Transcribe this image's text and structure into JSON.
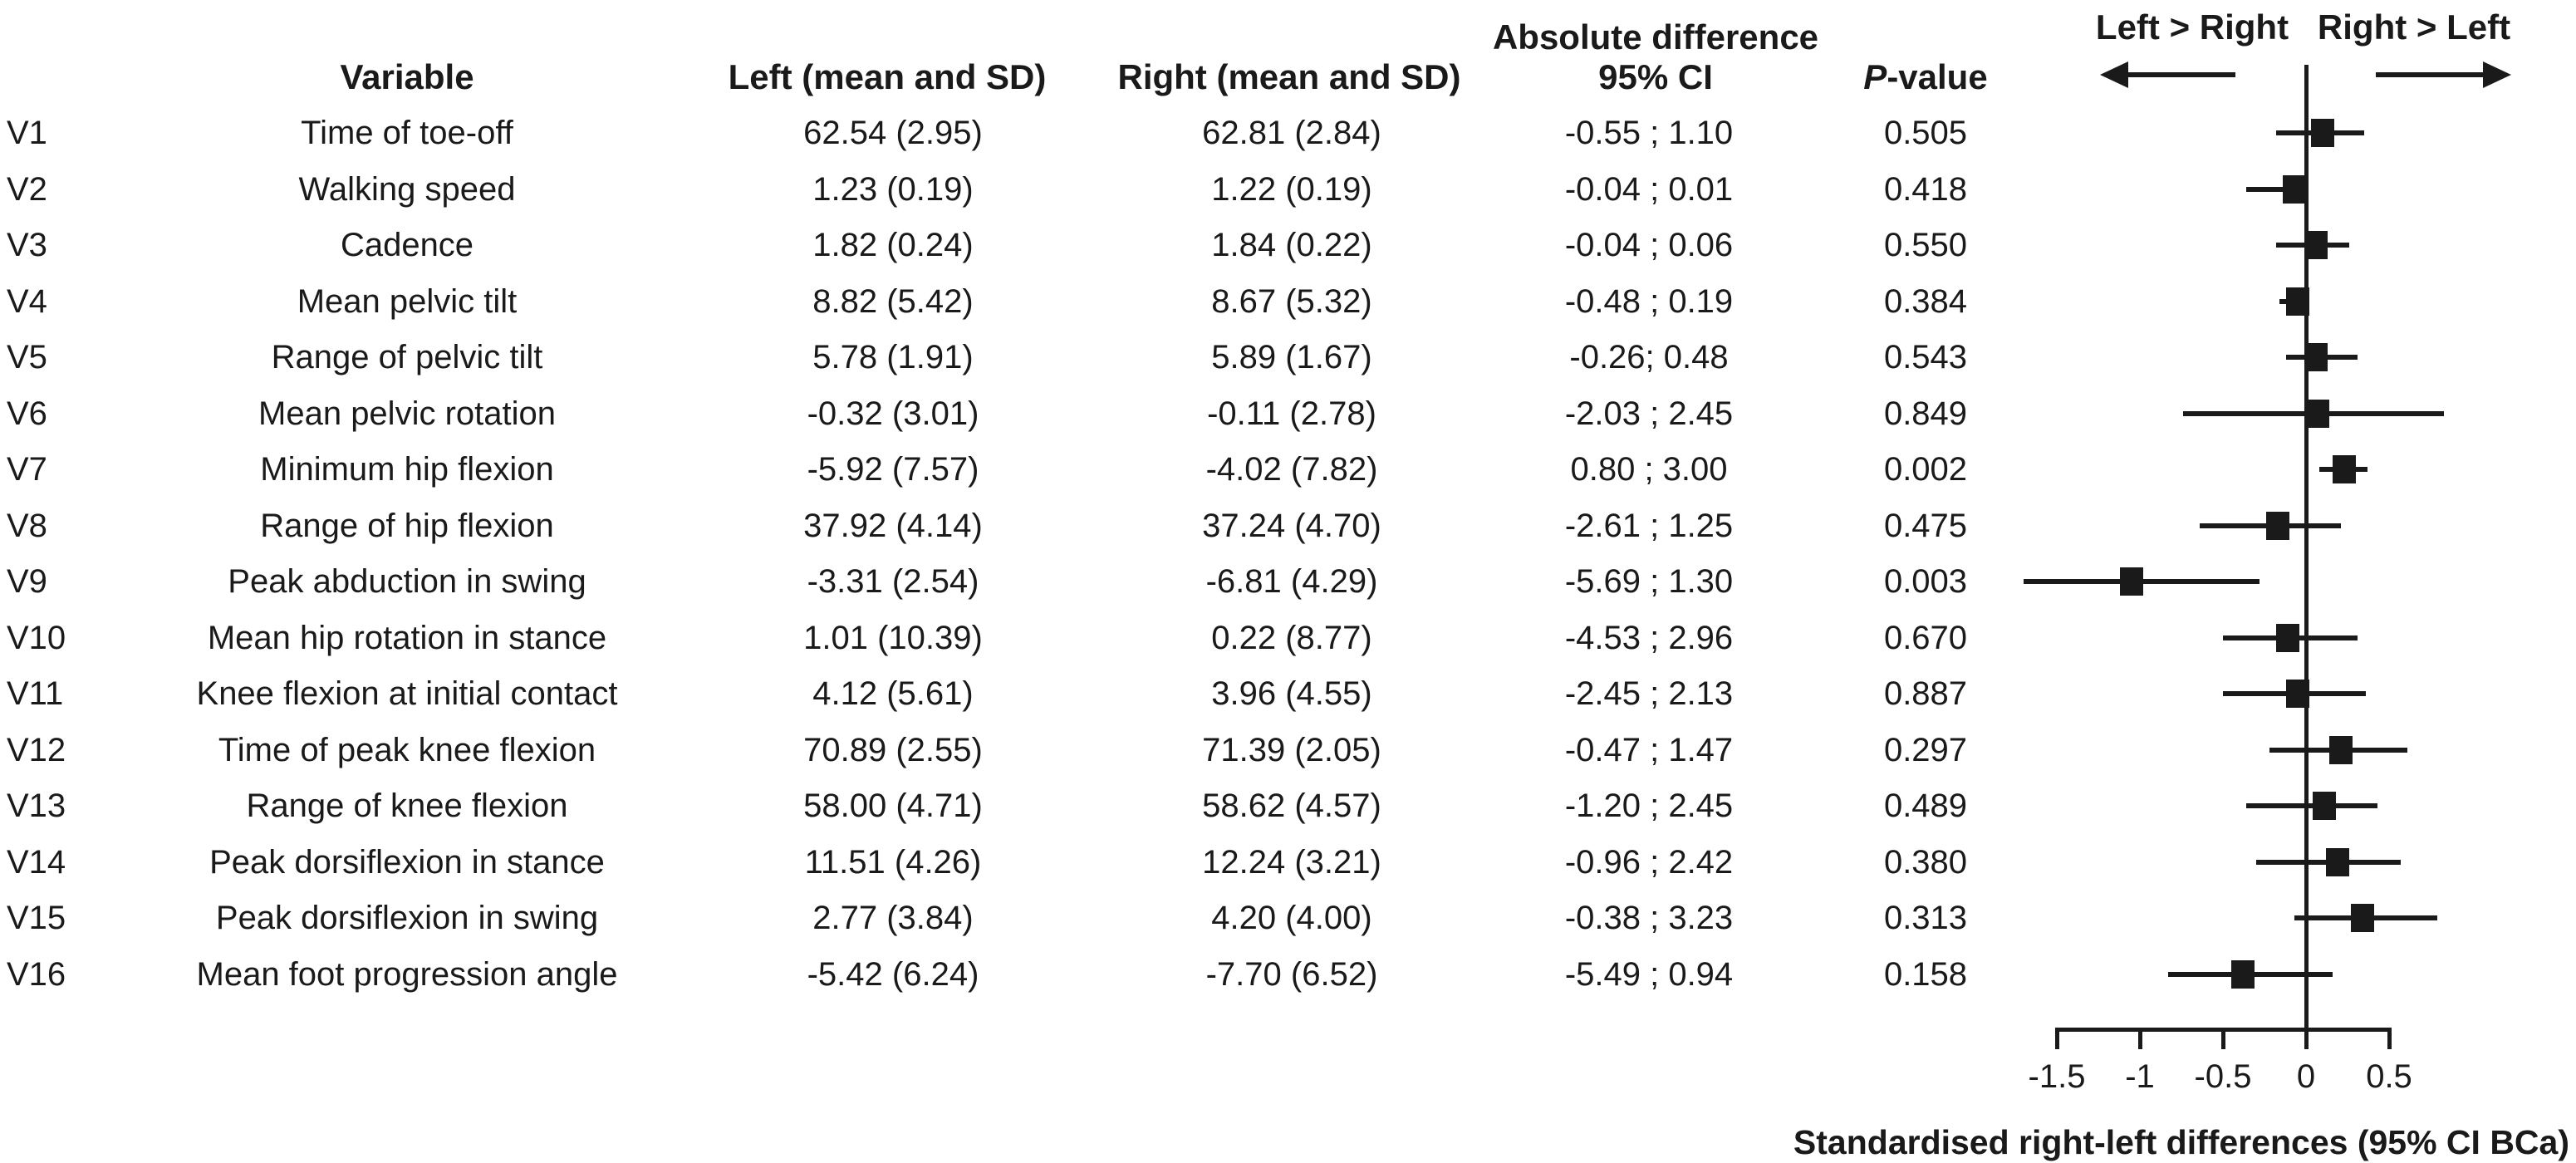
{
  "figure": {
    "background": "#ffffff",
    "ink_color": "#1a1a1a"
  },
  "table": {
    "headers": {
      "variable": "Variable",
      "left": "Left (mean and SD)",
      "right": "Right (mean and SD)",
      "abs_diff_line1": "Absolute difference",
      "abs_diff_line2": "95% CI",
      "p_italic": "P",
      "p_rest": "-value"
    }
  },
  "forest": {
    "direction_left_label": "Left > Right",
    "direction_right_label": "Right > Left",
    "axis_label": "Standardised right-left differences (95% CI BCa)"
  },
  "chart_data": {
    "type": "forest",
    "title": "",
    "xlabel": "Standardised right-left differences (95% CI BCa)",
    "xticks": [
      -1.5,
      -1,
      -0.5,
      0,
      0.5
    ],
    "tick_labels": [
      "-1.5",
      "-1",
      "-0.5",
      "0",
      "0.5"
    ],
    "xlim": [
      -1.8,
      1.0
    ],
    "zero_reference": 0,
    "grid": false,
    "legend": "none",
    "direction_labels": {
      "left": "Left > Right",
      "right": "Right > Left"
    },
    "rows": [
      {
        "id": "V1",
        "variable": "Time of toe-off",
        "left": "62.54 (2.95)",
        "right": "62.81 (2.84)",
        "ci": "-0.55 ; 1.10",
        "p": "0.505",
        "std_est": 0.1,
        "std_lo": -0.18,
        "std_hi": 0.35
      },
      {
        "id": "V2",
        "variable": "Walking speed",
        "left": "1.23 (0.19)",
        "right": "1.22 (0.19)",
        "ci": "-0.04 ; 0.01",
        "p": "0.418",
        "std_est": -0.07,
        "std_lo": -0.36,
        "std_hi": 0.01
      },
      {
        "id": "V3",
        "variable": "Cadence",
        "left": "1.82 (0.24)",
        "right": "1.84 (0.22)",
        "ci": "-0.04 ; 0.06",
        "p": "0.550",
        "std_est": 0.06,
        "std_lo": -0.18,
        "std_hi": 0.26
      },
      {
        "id": "V4",
        "variable": "Mean pelvic tilt",
        "left": "8.82 (5.42)",
        "right": "8.67 (5.32)",
        "ci": "-0.48 ; 0.19",
        "p": "0.384",
        "std_est": -0.05,
        "std_lo": -0.16,
        "std_hi": 0.02
      },
      {
        "id": "V5",
        "variable": "Range of pelvic tilt",
        "left": "5.78 (1.91)",
        "right": "5.89 (1.67)",
        "ci": "-0.26; 0.48",
        "p": "0.543",
        "std_est": 0.06,
        "std_lo": -0.12,
        "std_hi": 0.31
      },
      {
        "id": "V6",
        "variable": "Mean pelvic rotation",
        "left": "-0.32 (3.01)",
        "right": "-0.11 (2.78)",
        "ci": "-2.03 ; 2.45",
        "p": "0.849",
        "std_est": 0.07,
        "std_lo": -0.74,
        "std_hi": 0.83
      },
      {
        "id": "V7",
        "variable": "Minimum hip flexion",
        "left": "-5.92 (7.57)",
        "right": "-4.02 (7.82)",
        "ci": "0.80 ; 3.00",
        "p": "0.002",
        "std_est": 0.23,
        "std_lo": 0.08,
        "std_hi": 0.37
      },
      {
        "id": "V8",
        "variable": "Range of hip flexion",
        "left": "37.92 (4.14)",
        "right": "37.24 (4.70)",
        "ci": "-2.61 ; 1.25",
        "p": "0.475",
        "std_est": -0.17,
        "std_lo": -0.64,
        "std_hi": 0.21
      },
      {
        "id": "V9",
        "variable": "Peak abduction in swing",
        "left": "-3.31 (2.54)",
        "right": "-6.81 (4.29)",
        "ci": "-5.69 ; 1.30",
        "p": "0.003",
        "std_est": -1.05,
        "std_lo": -1.7,
        "std_hi": -0.28
      },
      {
        "id": "V10",
        "variable": "Mean hip rotation in stance",
        "left": "1.01 (10.39)",
        "right": "0.22 (8.77)",
        "ci": "-4.53 ; 2.96",
        "p": "0.670",
        "std_est": -0.11,
        "std_lo": -0.5,
        "std_hi": 0.31
      },
      {
        "id": "V11",
        "variable": "Knee flexion at initial contact",
        "left": "4.12 (5.61)",
        "right": "3.96 (4.55)",
        "ci": "-2.45 ; 2.13",
        "p": "0.887",
        "std_est": -0.05,
        "std_lo": -0.5,
        "std_hi": 0.36
      },
      {
        "id": "V12",
        "variable": "Time of peak knee flexion",
        "left": "70.89 (2.55)",
        "right": "71.39 (2.05)",
        "ci": "-0.47 ; 1.47",
        "p": "0.297",
        "std_est": 0.21,
        "std_lo": -0.22,
        "std_hi": 0.61
      },
      {
        "id": "V13",
        "variable": "Range of knee flexion",
        "left": "58.00 (4.71)",
        "right": "58.62 (4.57)",
        "ci": "-1.20 ; 2.45",
        "p": "0.489",
        "std_est": 0.11,
        "std_lo": -0.36,
        "std_hi": 0.43
      },
      {
        "id": "V14",
        "variable": "Peak dorsiflexion in stance",
        "left": "11.51 (4.26)",
        "right": "12.24 (3.21)",
        "ci": "-0.96 ; 2.42",
        "p": "0.380",
        "std_est": 0.19,
        "std_lo": -0.3,
        "std_hi": 0.57
      },
      {
        "id": "V15",
        "variable": "Peak dorsiflexion in swing",
        "left": "2.77 (3.84)",
        "right": "4.20 (4.00)",
        "ci": "-0.38 ; 3.23",
        "p": "0.313",
        "std_est": 0.34,
        "std_lo": -0.07,
        "std_hi": 0.79
      },
      {
        "id": "V16",
        "variable": "Mean foot progression angle",
        "left": "-5.42 (6.24)",
        "right": "-7.70 (6.52)",
        "ci": "-5.49 ; 0.94",
        "p": "0.158",
        "std_est": -0.38,
        "std_lo": -0.83,
        "std_hi": 0.16
      }
    ]
  }
}
